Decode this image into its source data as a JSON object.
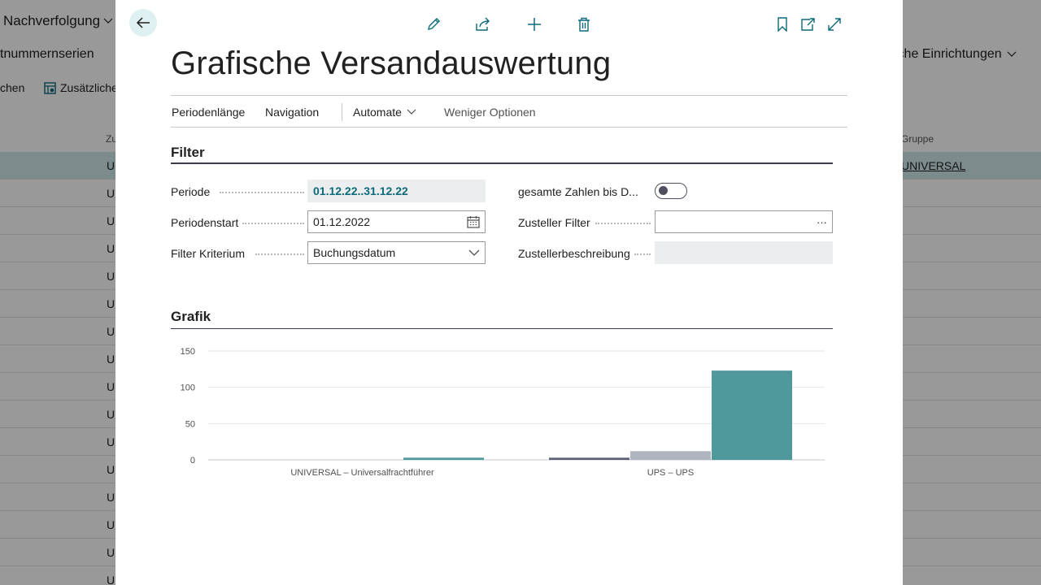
{
  "background": {
    "menu_nachverfolgung": "Nachverfolgung",
    "menu_seriennummern": "tnummernserien",
    "menu_einrichtungen": "iche Einrichtungen",
    "action_chen": "chen",
    "action_zusaetzliche": "Zusätzliche",
    "col_zu": "Zu",
    "col_gruppe": "Gruppe",
    "row_prefix": "U",
    "selected_row_group": "UNIVERSAL"
  },
  "dialog": {
    "title": "Grafische Versandauswertung",
    "toolbar_icons": [
      "edit-icon",
      "share-icon",
      "add-icon",
      "delete-icon",
      "bookmark-icon",
      "open-new-window-icon",
      "expand-icon"
    ],
    "actions": {
      "periodenlaenge": "Periodenlänge",
      "navigation": "Navigation",
      "automate": "Automate",
      "weniger_optionen": "Weniger Optionen"
    },
    "filter": {
      "section_title": "Filter",
      "periode_label": "Periode",
      "periode_value": "01.12.22..31.12.22",
      "periodenstart_label": "Periodenstart",
      "periodenstart_value": "01.12.2022",
      "filter_kriterium_label": "Filter Kriterium",
      "filter_kriterium_value": "Buchungsdatum",
      "gesamte_zahlen_label": "gesamte Zahlen bis D...",
      "gesamte_zahlen_on": false,
      "zusteller_filter_label": "Zusteller Filter",
      "zusteller_filter_value": "",
      "zusteller_filter_button": "···",
      "zustellerbeschreibung_label": "Zustellerbeschreibung",
      "zustellerbeschreibung_value": ""
    },
    "grafik": {
      "section_title": "Grafik"
    }
  },
  "colors": {
    "accent": "#0b6a7a",
    "bar_dark": "#5b6277",
    "bar_light": "#aeb5bf",
    "bar_teal": "#4f989c",
    "selected_row": "#cfeaec"
  },
  "chart_data": {
    "type": "bar",
    "categories": [
      "UNIVERSAL – Universalfrachtführer",
      "UPS – UPS"
    ],
    "series": [
      {
        "values": [
          0,
          3
        ]
      },
      {
        "values": [
          0,
          12
        ]
      },
      {
        "values": [
          3,
          123
        ]
      }
    ],
    "yticks": [
      0,
      50,
      100,
      150
    ],
    "ylim": [
      0,
      150
    ],
    "grid": true,
    "legend": "none"
  }
}
